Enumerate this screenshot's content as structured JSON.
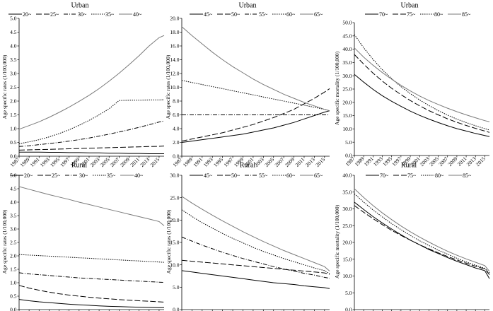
{
  "figure_panels": [
    {
      "title": "Urban",
      "ylabel": "Age specific rates (1/100,000)"
    },
    {
      "title": "Urban",
      "ylabel": "Age specific rates (1/100,000)"
    },
    {
      "title": "Urban",
      "ylabel": "Age specific mortality (1/100,000)"
    },
    {
      "title": "Rural",
      "ylabel": "Age specific rates (1/100,000)"
    },
    {
      "title": "Rural",
      "ylabel": "Age specific rates (1/100,000)"
    },
    {
      "title": "Rural",
      "ylabel": "Age specific mortality (1/100,000)"
    }
  ],
  "chart_data": [
    {
      "type": "line",
      "title": "Urban",
      "xlabel": "",
      "ylabel": "Age specific rates (1/100,000)",
      "x": [
        1987,
        1989,
        1991,
        1993,
        1995,
        1997,
        1999,
        2001,
        2003,
        2005,
        2007,
        2009,
        2011,
        2013,
        2015,
        2016
      ],
      "xticks": [
        "1987",
        "1989",
        "1991",
        "1993",
        "1995",
        "1997",
        "1999",
        "2001",
        "2003",
        "2005",
        "2007",
        "2009",
        "2011",
        "2013",
        "2015"
      ],
      "ylim": [
        0,
        5
      ],
      "yticks": [
        "0.0",
        "0.5",
        "1.0",
        "1.5",
        "2.0",
        "2.5",
        "3.0",
        "3.5",
        "4.0",
        "4.5",
        "5.0"
      ],
      "legend_position": "top",
      "series": [
        {
          "name": "20~",
          "values": [
            0.15,
            0.15,
            0.15,
            0.14,
            0.14,
            0.13,
            0.13,
            0.12,
            0.12,
            0.11,
            0.11,
            0.1,
            0.1,
            0.09,
            0.09,
            0.09
          ]
        },
        {
          "name": "25~",
          "values": [
            0.22,
            0.23,
            0.24,
            0.25,
            0.26,
            0.27,
            0.28,
            0.29,
            0.3,
            0.31,
            0.32,
            0.33,
            0.34,
            0.35,
            0.36,
            0.37
          ]
        },
        {
          "name": "30~",
          "values": [
            0.35,
            0.38,
            0.42,
            0.46,
            0.5,
            0.55,
            0.6,
            0.66,
            0.73,
            0.8,
            0.88,
            0.96,
            1.05,
            1.14,
            1.24,
            1.28
          ]
        },
        {
          "name": "35~",
          "values": [
            0.45,
            0.52,
            0.6,
            0.7,
            0.82,
            0.96,
            1.12,
            1.3,
            1.5,
            1.72,
            2.02,
            2.03,
            2.03,
            2.04,
            2.04,
            2.05
          ]
        },
        {
          "name": "40~",
          "values": [
            0.98,
            1.11,
            1.25,
            1.41,
            1.59,
            1.78,
            1.99,
            2.21,
            2.45,
            2.72,
            3.01,
            3.32,
            3.65,
            4.0,
            4.3,
            4.38
          ]
        }
      ]
    },
    {
      "type": "line",
      "title": "Urban",
      "xlabel": "",
      "ylabel": "Age specific rates (1/100,000)",
      "x": [
        1987,
        1989,
        1991,
        1993,
        1995,
        1997,
        1999,
        2001,
        2003,
        2005,
        2007,
        2009,
        2011,
        2013,
        2015,
        2016
      ],
      "xticks": [
        "1987",
        "1989",
        "1991",
        "1993",
        "1995",
        "1997",
        "1999",
        "2001",
        "2003",
        "2005",
        "2007",
        "2009",
        "2011",
        "2013",
        "2015"
      ],
      "ylim": [
        0,
        20
      ],
      "yticks": [
        "0.0",
        "2.0",
        "4.0",
        "6.0",
        "8.0",
        "10.0",
        "12.0",
        "14.0",
        "16.0",
        "18.0",
        "20.0"
      ],
      "legend_position": "top",
      "series": [
        {
          "name": "45~",
          "values": [
            2.0,
            2.2,
            2.4,
            2.6,
            2.8,
            3.0,
            3.2,
            3.5,
            3.8,
            4.1,
            4.5,
            4.9,
            5.4,
            5.9,
            6.4,
            6.6
          ]
        },
        {
          "name": "50~",
          "values": [
            2.2,
            2.5,
            2.8,
            3.1,
            3.4,
            3.8,
            4.2,
            4.6,
            5.1,
            5.6,
            6.2,
            6.8,
            7.6,
            8.4,
            9.3,
            9.8
          ]
        },
        {
          "name": "55~",
          "values": [
            6.0,
            6.0,
            6.0,
            6.0,
            6.0,
            6.0,
            6.0,
            6.0,
            6.0,
            6.0,
            6.0,
            6.0,
            6.0,
            6.0,
            6.0,
            6.0
          ]
        },
        {
          "name": "60~",
          "values": [
            11.0,
            10.7,
            10.4,
            10.1,
            9.8,
            9.5,
            9.2,
            8.9,
            8.6,
            8.3,
            8.0,
            7.7,
            7.4,
            7.1,
            6.8,
            6.6
          ]
        },
        {
          "name": "65~",
          "values": [
            18.8,
            17.5,
            16.3,
            15.1,
            14.0,
            13.0,
            12.1,
            11.2,
            10.4,
            9.7,
            9.0,
            8.4,
            7.8,
            7.3,
            6.8,
            6.6
          ]
        }
      ]
    },
    {
      "type": "line",
      "title": "Urban",
      "xlabel": "",
      "ylabel": "Age specific mortality (1/100,000)",
      "x": [
        1987,
        1989,
        1991,
        1993,
        1995,
        1997,
        1999,
        2001,
        2003,
        2005,
        2007,
        2009,
        2011,
        2013,
        2015,
        2016
      ],
      "xticks": [
        "1987",
        "1989",
        "1991",
        "1993",
        "1995",
        "1997",
        "1999",
        "2001",
        "2003",
        "2005",
        "2007",
        "2009",
        "2011",
        "2013",
        "2015"
      ],
      "ylim": [
        0,
        50
      ],
      "yticks": [
        "0.0",
        "5.0",
        "10.0",
        "15.0",
        "20.0",
        "25.0",
        "30.0",
        "35.0",
        "40.0",
        "45.0",
        "50.0"
      ],
      "legend_position": "top",
      "series": [
        {
          "name": "70~",
          "values": [
            30.5,
            27.6,
            24.9,
            22.5,
            20.4,
            18.5,
            16.7,
            15.1,
            13.7,
            12.4,
            11.2,
            10.1,
            9.2,
            8.3,
            7.5,
            7.1
          ]
        },
        {
          "name": "75~",
          "values": [
            38.0,
            34.4,
            31.0,
            28.0,
            25.3,
            22.9,
            20.7,
            18.7,
            16.9,
            15.3,
            13.8,
            12.5,
            11.3,
            10.2,
            9.2,
            8.7
          ]
        },
        {
          "name": "80~",
          "values": [
            45.5,
            40.5,
            36.2,
            32.3,
            28.9,
            25.9,
            23.3,
            20.9,
            18.8,
            16.9,
            15.2,
            13.7,
            12.4,
            11.2,
            10.1,
            9.6
          ]
        },
        {
          "name": "85~",
          "values": [
            40.5,
            37.0,
            34.0,
            31.2,
            28.7,
            26.4,
            24.3,
            22.4,
            20.7,
            19.2,
            17.8,
            16.5,
            15.3,
            14.2,
            13.1,
            12.7
          ]
        }
      ]
    },
    {
      "type": "line",
      "title": "Rural",
      "xlabel": "",
      "ylabel": "Age specific rates (1/100,000)",
      "x": [
        1987,
        1989,
        1991,
        1993,
        1995,
        1997,
        1999,
        2001,
        2003,
        2005,
        2007,
        2009,
        2011,
        2013,
        2015,
        2016
      ],
      "xticks": [
        "1987",
        "1989",
        "1991",
        "1993",
        "1995",
        "1997",
        "1999",
        "2001",
        "2003",
        "2005",
        "2007",
        "2009",
        "2011",
        "2013",
        "2015"
      ],
      "ylim": [
        0,
        5
      ],
      "yticks": [
        "0.0",
        "0.5",
        "1.0",
        "1.5",
        "2.0",
        "2.5",
        "3.0",
        "3.5",
        "4.0",
        "4.5",
        "5.0"
      ],
      "legend_position": "top",
      "series": [
        {
          "name": "20~",
          "values": [
            0.38,
            0.33,
            0.29,
            0.26,
            0.23,
            0.2,
            0.18,
            0.16,
            0.14,
            0.12,
            0.11,
            0.1,
            0.09,
            0.08,
            0.07,
            0.07
          ]
        },
        {
          "name": "25~",
          "values": [
            0.9,
            0.8,
            0.72,
            0.65,
            0.59,
            0.54,
            0.5,
            0.46,
            0.43,
            0.4,
            0.37,
            0.35,
            0.33,
            0.31,
            0.29,
            0.28
          ]
        },
        {
          "name": "30~",
          "values": [
            1.37,
            1.33,
            1.3,
            1.27,
            1.24,
            1.21,
            1.18,
            1.16,
            1.14,
            1.12,
            1.1,
            1.08,
            1.06,
            1.04,
            1.02,
            1.01
          ]
        },
        {
          "name": "35~",
          "values": [
            2.05,
            2.03,
            2.01,
            1.99,
            1.97,
            1.95,
            1.93,
            1.91,
            1.89,
            1.87,
            1.85,
            1.83,
            1.81,
            1.79,
            1.77,
            1.76
          ]
        },
        {
          "name": "40~",
          "values": [
            4.58,
            4.48,
            4.38,
            4.28,
            4.19,
            4.1,
            4.0,
            3.91,
            3.82,
            3.73,
            3.64,
            3.55,
            3.46,
            3.37,
            3.28,
            3.12
          ]
        }
      ]
    },
    {
      "type": "line",
      "title": "Rural",
      "xlabel": "",
      "ylabel": "Age specific rates (1/100,000)",
      "x": [
        1987,
        1989,
        1991,
        1993,
        1995,
        1997,
        1999,
        2001,
        2003,
        2005,
        2007,
        2009,
        2011,
        2013,
        2015,
        2016
      ],
      "xticks": [
        "1987",
        "1989",
        "1991",
        "1993",
        "1995",
        "1997",
        "1999",
        "2001",
        "2003",
        "2005",
        "2007",
        "2009",
        "2011",
        "2013",
        "2015"
      ],
      "ylim": [
        0,
        30
      ],
      "yticks": [
        "0.0",
        "5.0",
        "10.0",
        "15.0",
        "20.0",
        "25.0",
        "30.0"
      ],
      "legend_position": "top",
      "series": [
        {
          "name": "45~",
          "values": [
            8.7,
            8.4,
            8.1,
            7.8,
            7.5,
            7.2,
            6.9,
            6.6,
            6.3,
            6.0,
            5.8,
            5.6,
            5.3,
            5.1,
            4.9,
            4.7
          ]
        },
        {
          "name": "50~",
          "values": [
            11.0,
            10.8,
            10.6,
            10.4,
            10.2,
            10.0,
            9.8,
            9.6,
            9.4,
            9.2,
            9.0,
            8.8,
            8.6,
            8.4,
            8.2,
            7.9
          ]
        },
        {
          "name": "55~",
          "values": [
            16.2,
            15.3,
            14.4,
            13.6,
            12.8,
            12.1,
            11.4,
            10.8,
            10.2,
            9.6,
            9.1,
            8.6,
            8.1,
            7.7,
            7.2,
            7.0
          ]
        },
        {
          "name": "60~",
          "values": [
            22.3,
            20.8,
            19.4,
            18.2,
            17.0,
            15.9,
            14.9,
            13.9,
            13.0,
            12.2,
            11.4,
            10.7,
            10.0,
            9.3,
            8.7,
            8.0
          ]
        },
        {
          "name": "65~",
          "values": [
            25.3,
            23.8,
            22.4,
            21.1,
            19.8,
            18.6,
            17.4,
            16.3,
            15.2,
            14.2,
            13.2,
            12.3,
            11.4,
            10.5,
            9.6,
            8.6
          ]
        }
      ]
    },
    {
      "type": "line",
      "title": "Rural",
      "xlabel": "",
      "ylabel": "Age specific mortality (1/100,000)",
      "x": [
        1987,
        1989,
        1991,
        1993,
        1995,
        1997,
        1999,
        2001,
        2003,
        2005,
        2007,
        2009,
        2011,
        2013,
        2015,
        2016
      ],
      "xticks": [
        "1987",
        "1989",
        "1991",
        "1993",
        "1995",
        "1997",
        "1999",
        "2001",
        "2003",
        "2005",
        "2007",
        "2009",
        "2011",
        "2013",
        "2015"
      ],
      "ylim": [
        0,
        40
      ],
      "yticks": [
        "0.0",
        "5.0",
        "10.0",
        "15.0",
        "20.0",
        "25.0",
        "30.0",
        "35.0",
        "40.0"
      ],
      "legend_position": "top",
      "series": [
        {
          "name": "70~",
          "values": [
            32.0,
            29.8,
            27.7,
            25.8,
            24.0,
            22.3,
            20.7,
            19.3,
            17.9,
            16.7,
            15.5,
            14.4,
            13.4,
            12.4,
            11.6,
            9.2
          ]
        },
        {
          "name": "75~",
          "values": [
            31.0,
            29.0,
            27.1,
            25.3,
            23.6,
            22.1,
            20.7,
            19.3,
            18.1,
            16.9,
            15.8,
            14.8,
            13.8,
            12.9,
            12.1,
            10.4
          ]
        },
        {
          "name": "80~",
          "values": [
            34.5,
            32.0,
            29.7,
            27.6,
            25.6,
            23.8,
            22.1,
            20.5,
            19.1,
            17.7,
            16.5,
            15.3,
            14.2,
            13.2,
            12.3,
            10.9
          ]
        },
        {
          "name": "85~",
          "values": [
            36.0,
            33.4,
            31.0,
            28.8,
            26.8,
            24.9,
            23.2,
            21.6,
            20.1,
            18.7,
            17.4,
            16.2,
            15.1,
            14.1,
            13.1,
            11.4
          ]
        }
      ]
    }
  ]
}
